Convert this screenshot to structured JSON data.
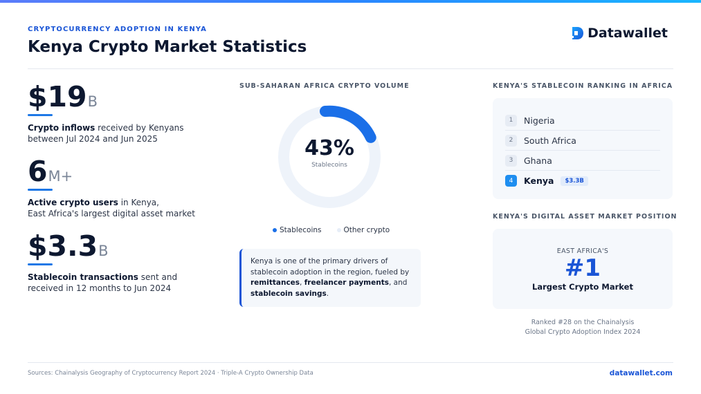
{
  "header": {
    "eyebrow": "CRYPTOCURRENCY ADOPTION IN KENYA",
    "title": "Kenya Crypto Market Statistics",
    "logo_text": "Datawallet",
    "logo_icon": "datawallet-logo-icon"
  },
  "stats": [
    {
      "value": "$19",
      "unit": "B",
      "bold": "Crypto inflows",
      "rest": " received by Kenyans",
      "line2": "between Jul 2024 and Jun 2025"
    },
    {
      "value": "6",
      "unit": "M+",
      "bold": "Active crypto users",
      "rest": " in Kenya,",
      "line2": "East Africa's largest digital asset market"
    },
    {
      "value": "$3.3",
      "unit": "B",
      "bold": "Stablecoin transactions",
      "rest": " sent and",
      "line2": "received in 12 months to Jun 2024"
    }
  ],
  "volume": {
    "label": "SUB-SAHARAN AFRICA CRYPTO VOLUME",
    "center_value": "43%",
    "center_label": "Stablecoins",
    "legend": [
      {
        "name": "Stablecoins",
        "color": "#1a6fe8"
      },
      {
        "name": "Other crypto",
        "color": "#e6edf7"
      }
    ]
  },
  "chart_data": {
    "type": "pie",
    "categories": [
      "Stablecoins",
      "Other crypto"
    ],
    "values": [
      43,
      57
    ],
    "title": "SUB-SAHARAN AFRICA CRYPTO VOLUME"
  },
  "note": {
    "p1": "Kenya is one of the primary drivers of",
    "p2": "stablecoin adoption in the region, fueled by",
    "b1": "remittances",
    "sep1": ", ",
    "b2": "freelancer payments",
    "sep2": ", and",
    "b3": "stablecoin savings",
    "end": "."
  },
  "ranking": {
    "label": "KENYA'S STABLECOIN RANKING IN AFRICA",
    "items": [
      {
        "rank": "1",
        "name": "Nigeria"
      },
      {
        "rank": "2",
        "name": "South Africa"
      },
      {
        "rank": "3",
        "name": "Ghana"
      },
      {
        "rank": "4",
        "name": "Kenya",
        "badge": "$3.3B"
      }
    ]
  },
  "position": {
    "label": "KENYA'S DIGITAL ASSET MARKET POSITION",
    "top": "EAST AFRICA'S",
    "big": "#1",
    "bottom": "Largest Crypto Market",
    "ranked_line1": "Ranked #28 on the Chainalysis",
    "ranked_line2": "Global Crypto Adoption Index 2024"
  },
  "footer": {
    "sources": "Sources: Chainalysis Geography of Cryptocurrency Report 2024  ·  Triple-A Crypto Ownership Data",
    "url": "datawallet.com"
  },
  "colors": {
    "accent": "#1a55d6",
    "donut_fill": "#1a6fe8",
    "donut_track": "#eef3fa"
  }
}
